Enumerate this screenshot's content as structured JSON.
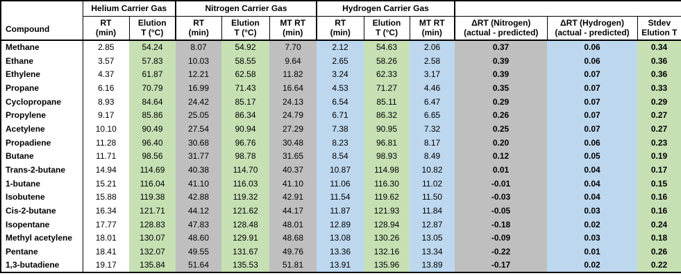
{
  "colors": {
    "green_fill": "#c6e0b4",
    "gray_fill": "#bfbfbf",
    "blue_fill": "#bdd7ee",
    "border": "#000000",
    "background": "#ffffff"
  },
  "table": {
    "compound_header": "Compound",
    "groups": [
      {
        "label": "Helium Carrier Gas",
        "span": 2
      },
      {
        "label": "Nitrogen Carrier Gas",
        "span": 3
      },
      {
        "label": "Hydrogen Carrier Gas",
        "span": 3
      }
    ],
    "sub_headers": [
      "RT\n(min)",
      "Elution\nT (°C)",
      "RT\n(min)",
      "Elution\nT (°C)",
      "MT RT\n(min)",
      "RT\n(min)",
      "Elution\nT (°C)",
      "MT RT\n(min)",
      "ΔRT (Nitrogen)\n(actual - predicted)",
      "ΔRT (Hydrogen)\n(actual - predicted)",
      "Stdev\nElution T"
    ],
    "column_keys": [
      "compound",
      "he_rt",
      "he_elution_t",
      "n2_rt",
      "n2_elution_t",
      "n2_mt_rt",
      "h2_rt",
      "h2_elution_t",
      "h2_mt_rt",
      "drt_n2",
      "drt_h2",
      "stdev_elution_t"
    ],
    "rows": [
      {
        "compound": "Methane",
        "he_rt": "2.85",
        "he_elution_t": "54.24",
        "n2_rt": "8.07",
        "n2_elution_t": "54.92",
        "n2_mt_rt": "7.70",
        "h2_rt": "2.12",
        "h2_elution_t": "54.63",
        "h2_mt_rt": "2.06",
        "drt_n2": "0.37",
        "drt_h2": "0.06",
        "stdev_elution_t": "0.34"
      },
      {
        "compound": "Ethane",
        "he_rt": "3.57",
        "he_elution_t": "57.83",
        "n2_rt": "10.03",
        "n2_elution_t": "58.55",
        "n2_mt_rt": "9.64",
        "h2_rt": "2.65",
        "h2_elution_t": "58.26",
        "h2_mt_rt": "2.58",
        "drt_n2": "0.39",
        "drt_h2": "0.06",
        "stdev_elution_t": "0.36"
      },
      {
        "compound": "Ethylene",
        "he_rt": "4.37",
        "he_elution_t": "61.87",
        "n2_rt": "12.21",
        "n2_elution_t": "62.58",
        "n2_mt_rt": "11.82",
        "h2_rt": "3.24",
        "h2_elution_t": "62.33",
        "h2_mt_rt": "3.17",
        "drt_n2": "0.39",
        "drt_h2": "0.07",
        "stdev_elution_t": "0.36"
      },
      {
        "compound": "Propane",
        "he_rt": "6.16",
        "he_elution_t": "70.79",
        "n2_rt": "16.99",
        "n2_elution_t": "71.43",
        "n2_mt_rt": "16.64",
        "h2_rt": "4.53",
        "h2_elution_t": "71.27",
        "h2_mt_rt": "4.46",
        "drt_n2": "0.35",
        "drt_h2": "0.07",
        "stdev_elution_t": "0.33"
      },
      {
        "compound": "Cyclopropane",
        "he_rt": "8.93",
        "he_elution_t": "84.64",
        "n2_rt": "24.42",
        "n2_elution_t": "85.17",
        "n2_mt_rt": "24.13",
        "h2_rt": "6.54",
        "h2_elution_t": "85.11",
        "h2_mt_rt": "6.47",
        "drt_n2": "0.29",
        "drt_h2": "0.07",
        "stdev_elution_t": "0.29"
      },
      {
        "compound": "Propylene",
        "he_rt": "9.17",
        "he_elution_t": "85.86",
        "n2_rt": "25.05",
        "n2_elution_t": "86.34",
        "n2_mt_rt": "24.79",
        "h2_rt": "6.71",
        "h2_elution_t": "86.32",
        "h2_mt_rt": "6.65",
        "drt_n2": "0.26",
        "drt_h2": "0.07",
        "stdev_elution_t": "0.27"
      },
      {
        "compound": "Acetylene",
        "he_rt": "10.10",
        "he_elution_t": "90.49",
        "n2_rt": "27.54",
        "n2_elution_t": "90.94",
        "n2_mt_rt": "27.29",
        "h2_rt": "7.38",
        "h2_elution_t": "90.95",
        "h2_mt_rt": "7.32",
        "drt_n2": "0.25",
        "drt_h2": "0.07",
        "stdev_elution_t": "0.27"
      },
      {
        "compound": "Propadiene",
        "he_rt": "11.28",
        "he_elution_t": "96.40",
        "n2_rt": "30.68",
        "n2_elution_t": "96.76",
        "n2_mt_rt": "30.48",
        "h2_rt": "8.23",
        "h2_elution_t": "96.81",
        "h2_mt_rt": "8.17",
        "drt_n2": "0.20",
        "drt_h2": "0.06",
        "stdev_elution_t": "0.23"
      },
      {
        "compound": "Butane",
        "he_rt": "11.71",
        "he_elution_t": "98.56",
        "n2_rt": "31.77",
        "n2_elution_t": "98.78",
        "n2_mt_rt": "31.65",
        "h2_rt": "8.54",
        "h2_elution_t": "98.93",
        "h2_mt_rt": "8.49",
        "drt_n2": "0.12",
        "drt_h2": "0.05",
        "stdev_elution_t": "0.19"
      },
      {
        "compound": "Trans-2-butane",
        "he_rt": "14.94",
        "he_elution_t": "114.69",
        "n2_rt": "40.38",
        "n2_elution_t": "114.70",
        "n2_mt_rt": "40.37",
        "h2_rt": "10.87",
        "h2_elution_t": "114.98",
        "h2_mt_rt": "10.82",
        "drt_n2": "0.01",
        "drt_h2": "0.04",
        "stdev_elution_t": "0.17"
      },
      {
        "compound": "1-butane",
        "he_rt": "15.21",
        "he_elution_t": "116.04",
        "n2_rt": "41.10",
        "n2_elution_t": "116.03",
        "n2_mt_rt": "41.10",
        "h2_rt": "11.06",
        "h2_elution_t": "116.30",
        "h2_mt_rt": "11.02",
        "drt_n2": "-0.01",
        "drt_h2": "0.04",
        "stdev_elution_t": "0.15"
      },
      {
        "compound": "Isobutene",
        "he_rt": "15.88",
        "he_elution_t": "119.38",
        "n2_rt": "42.88",
        "n2_elution_t": "119.32",
        "n2_mt_rt": "42.91",
        "h2_rt": "11.54",
        "h2_elution_t": "119.62",
        "h2_mt_rt": "11.50",
        "drt_n2": "-0.03",
        "drt_h2": "0.04",
        "stdev_elution_t": "0.16"
      },
      {
        "compound": "Cis-2-butane",
        "he_rt": "16.34",
        "he_elution_t": "121.71",
        "n2_rt": "44.12",
        "n2_elution_t": "121.62",
        "n2_mt_rt": "44.17",
        "h2_rt": "11.87",
        "h2_elution_t": "121.93",
        "h2_mt_rt": "11.84",
        "drt_n2": "-0.05",
        "drt_h2": "0.03",
        "stdev_elution_t": "0.16"
      },
      {
        "compound": "Isopentane",
        "he_rt": "17.77",
        "he_elution_t": "128.83",
        "n2_rt": "47.83",
        "n2_elution_t": "128.48",
        "n2_mt_rt": "48.01",
        "h2_rt": "12.89",
        "h2_elution_t": "128.94",
        "h2_mt_rt": "12.87",
        "drt_n2": "-0.18",
        "drt_h2": "0.02",
        "stdev_elution_t": "0.24"
      },
      {
        "compound": "Methyl acetylene",
        "he_rt": "18.01",
        "he_elution_t": "130.07",
        "n2_rt": "48.60",
        "n2_elution_t": "129.91",
        "n2_mt_rt": "48.68",
        "h2_rt": "13.08",
        "h2_elution_t": "130.26",
        "h2_mt_rt": "13.05",
        "drt_n2": "-0.09",
        "drt_h2": "0.03",
        "stdev_elution_t": "0.18"
      },
      {
        "compound": "Pentane",
        "he_rt": "18.41",
        "he_elution_t": "132.07",
        "n2_rt": "49.55",
        "n2_elution_t": "131.67",
        "n2_mt_rt": "49.76",
        "h2_rt": "13.36",
        "h2_elution_t": "132.16",
        "h2_mt_rt": "13.34",
        "drt_n2": "-0.22",
        "drt_h2": "0.01",
        "stdev_elution_t": "0.26"
      },
      {
        "compound": "1,3-butadiene",
        "he_rt": "19.17",
        "he_elution_t": "135.84",
        "n2_rt": "51.64",
        "n2_elution_t": "135.53",
        "n2_mt_rt": "51.81",
        "h2_rt": "13.91",
        "h2_elution_t": "135.96",
        "h2_mt_rt": "13.89",
        "drt_n2": "-0.17",
        "drt_h2": "0.02",
        "stdev_elution_t": "0.22"
      }
    ]
  }
}
